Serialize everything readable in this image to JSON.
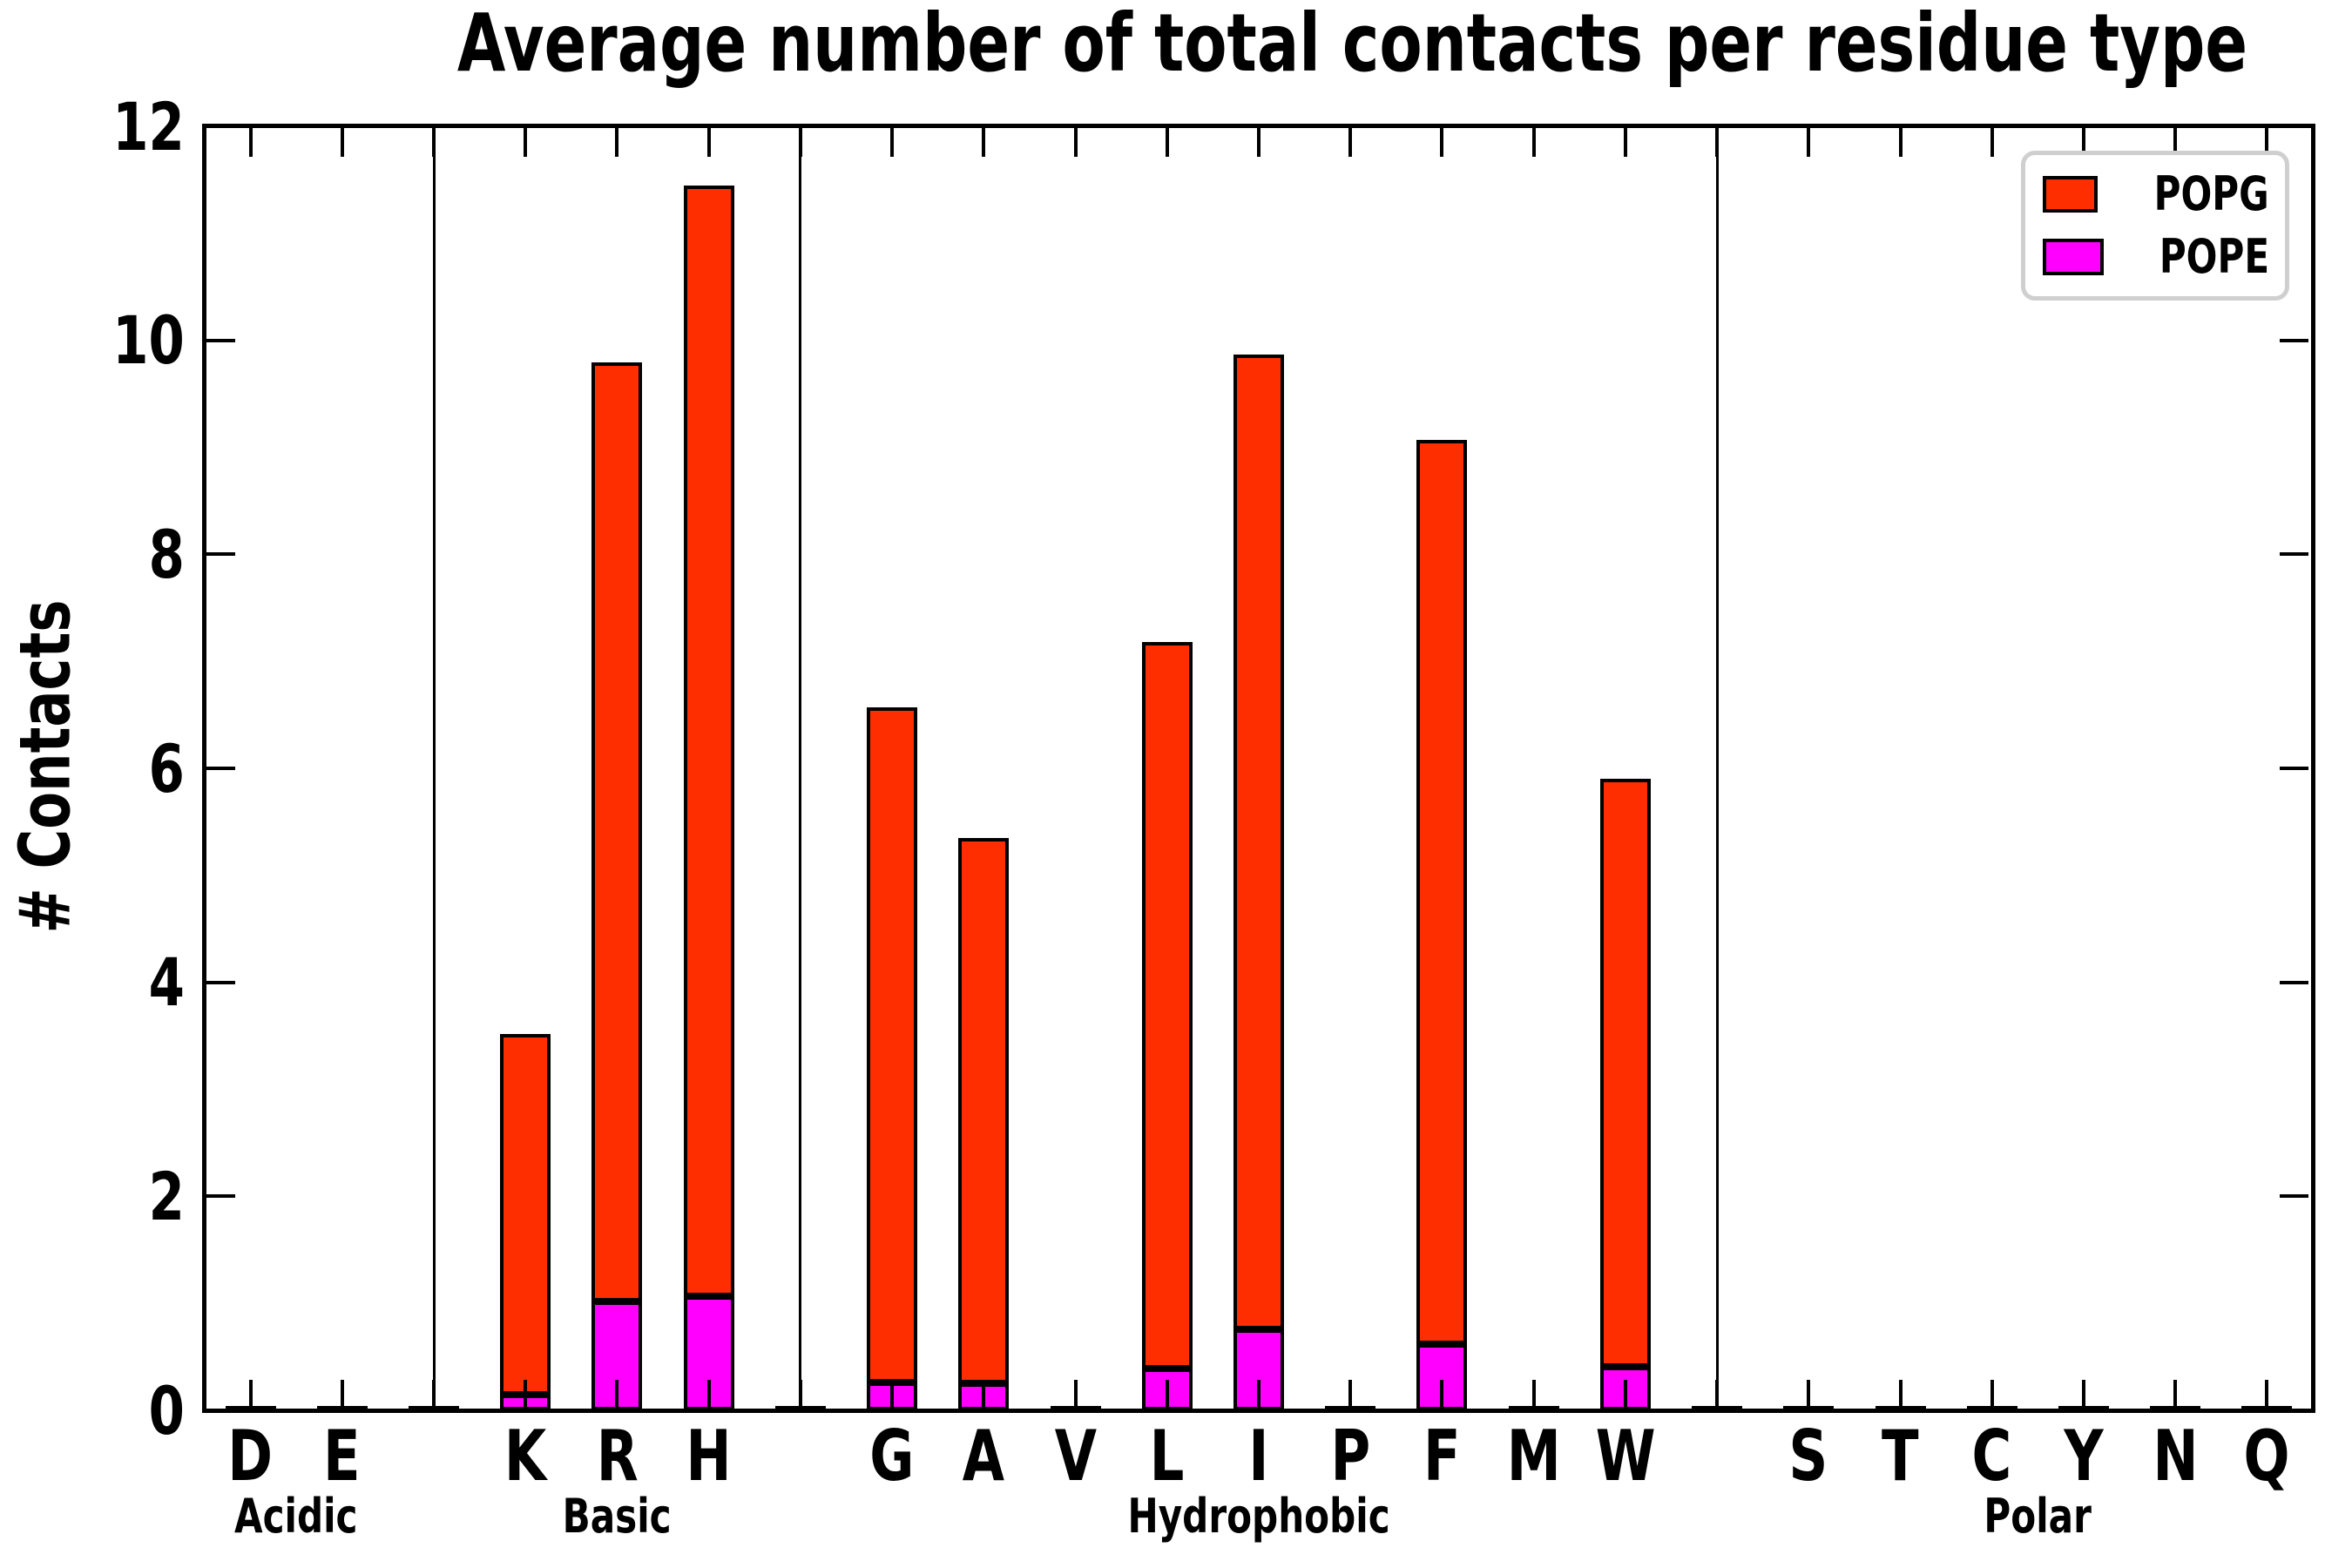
{
  "chart_data": {
    "type": "bar",
    "stacked": true,
    "title": "Average number of total contacts per residue type",
    "ylabel": "# Contacts",
    "ylim": [
      0,
      12
    ],
    "yticks": [
      0,
      2,
      4,
      6,
      8,
      10,
      12
    ],
    "legend_position": "upper right",
    "grid": false,
    "categories": [
      "D",
      "E",
      "K",
      "R",
      "H",
      "G",
      "A",
      "V",
      "L",
      "I",
      "P",
      "F",
      "M",
      "W",
      "S",
      "T",
      "C",
      "Y",
      "N",
      "Q"
    ],
    "groups": [
      {
        "label": "Acidic",
        "residues": [
          "D",
          "E"
        ]
      },
      {
        "label": "Basic",
        "residues": [
          "K",
          "R",
          "H"
        ]
      },
      {
        "label": "Hydrophobic",
        "residues": [
          "G",
          "A",
          "V",
          "L",
          "I",
          "P",
          "F",
          "M",
          "W"
        ]
      },
      {
        "label": "Polar",
        "residues": [
          "S",
          "T",
          "C",
          "Y",
          "N",
          "Q"
        ]
      }
    ],
    "series": [
      {
        "name": "POPG",
        "color": "#FF2E00",
        "values": [
          0.02,
          0.02,
          3.37,
          8.77,
          10.38,
          6.31,
          5.1,
          0.02,
          6.79,
          9.11,
          0.02,
          8.45,
          0.02,
          5.49,
          0.02,
          0.02,
          0.02,
          0.02,
          0.02,
          0.02
        ]
      },
      {
        "name": "POPE",
        "color": "#FF00FF",
        "values": [
          0.01,
          0.01,
          0.15,
          1.02,
          1.07,
          0.26,
          0.25,
          0.01,
          0.39,
          0.76,
          0.01,
          0.62,
          0.01,
          0.41,
          0.01,
          0.01,
          0.01,
          0.01,
          0.01,
          0.01
        ]
      }
    ],
    "bar_edge_color": "#000000",
    "gap_bar_value": 0.02
  }
}
